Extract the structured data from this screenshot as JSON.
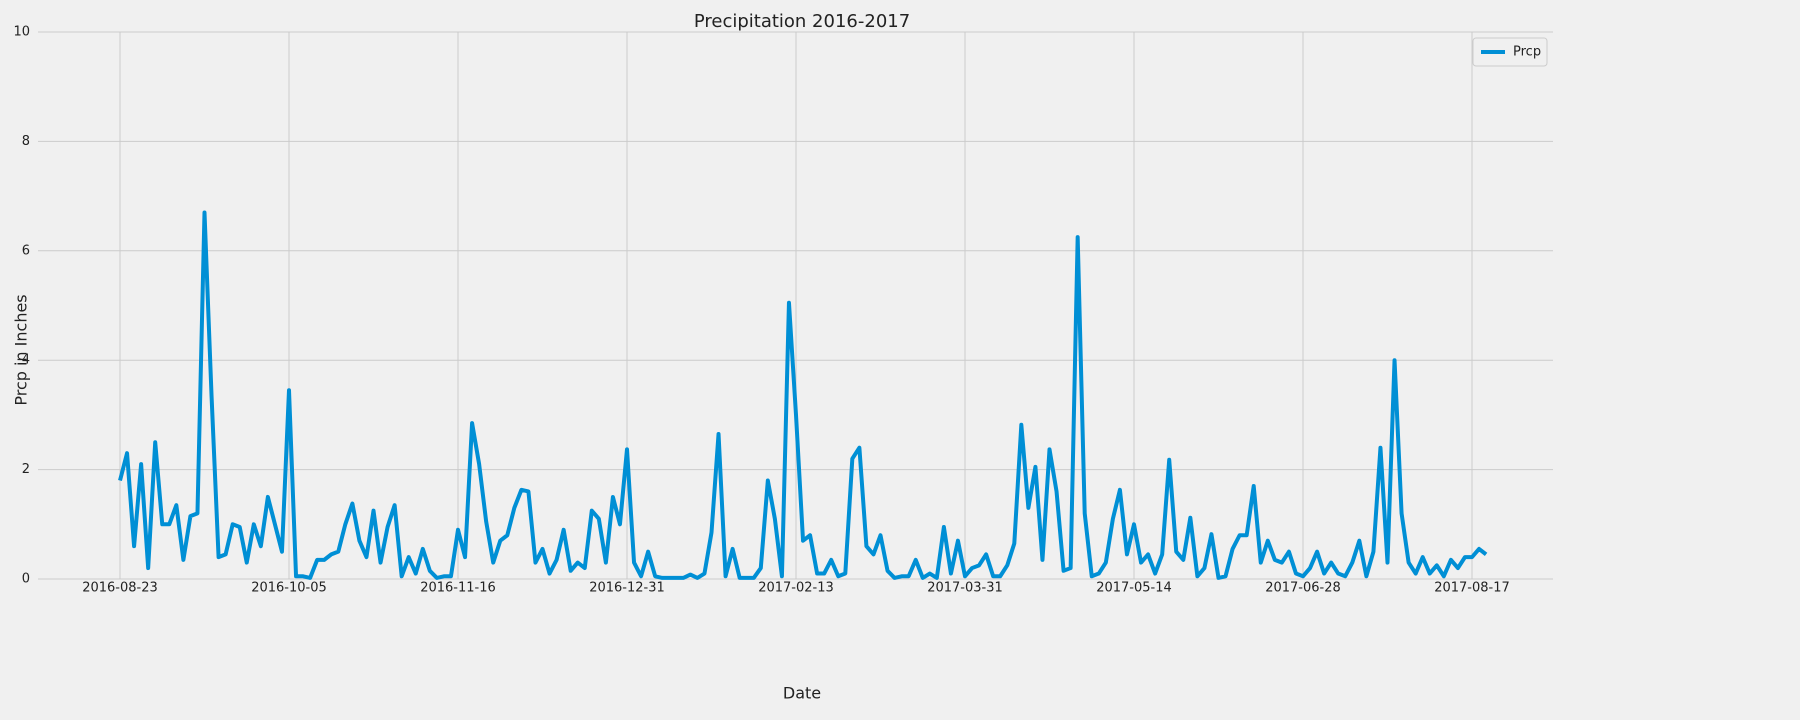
{
  "chart_data": {
    "type": "line",
    "title": "Precipitation 2016-2017",
    "x_label": "Date",
    "y_label": "Prcp in Inches",
    "categories": [
      "2016-08-23",
      null,
      null,
      null,
      null,
      null,
      null,
      null,
      null,
      null,
      null,
      null,
      null,
      null,
      null,
      null,
      null,
      null,
      null,
      null,
      null,
      null,
      null,
      null,
      "2016-10-05",
      null,
      null,
      null,
      null,
      null,
      null,
      null,
      null,
      null,
      null,
      null,
      null,
      null,
      null,
      null,
      null,
      null,
      null,
      null,
      null,
      null,
      null,
      null,
      "2016-11-16",
      null,
      null,
      null,
      null,
      null,
      null,
      null,
      null,
      null,
      null,
      null,
      null,
      null,
      null,
      null,
      null,
      null,
      null,
      null,
      null,
      null,
      null,
      null,
      "2016-12-31",
      null,
      null,
      null,
      null,
      null,
      null,
      null,
      null,
      null,
      null,
      null,
      null,
      null,
      null,
      null,
      null,
      null,
      null,
      null,
      null,
      null,
      null,
      null,
      "2017-02-13",
      null,
      null,
      null,
      null,
      null,
      null,
      null,
      null,
      null,
      null,
      null,
      null,
      null,
      null,
      null,
      null,
      null,
      null,
      null,
      null,
      null,
      null,
      null,
      "2017-03-31",
      null,
      null,
      null,
      null,
      null,
      null,
      null,
      null,
      null,
      null,
      null,
      null,
      null,
      null,
      null,
      null,
      null,
      null,
      null,
      null,
      null,
      null,
      null,
      "2017-05-14",
      null,
      null,
      null,
      null,
      null,
      null,
      null,
      null,
      null,
      null,
      null,
      null,
      null,
      null,
      null,
      null,
      null,
      null,
      null,
      null,
      null,
      null,
      null,
      "2017-06-28",
      null,
      null,
      null,
      null,
      null,
      null,
      null,
      null,
      null,
      null,
      null,
      null,
      null,
      null,
      null,
      null,
      null,
      null,
      null,
      null,
      null,
      null,
      null,
      "2017-08-17",
      null,
      null
    ],
    "series": [
      {
        "name": "Prcp",
        "color": "#008fd5",
        "values": [
          1.8,
          2.3,
          0.6,
          2.1,
          0.2,
          2.5,
          1.0,
          1.0,
          1.35,
          0.35,
          1.15,
          1.2,
          6.7,
          3.35,
          0.4,
          0.45,
          1.0,
          0.95,
          0.3,
          1.0,
          0.6,
          1.5,
          1.0,
          0.5,
          3.45,
          0.05,
          0.05,
          0.02,
          0.35,
          0.35,
          0.45,
          0.5,
          1.0,
          1.38,
          0.7,
          0.4,
          1.25,
          0.3,
          0.95,
          1.35,
          0.05,
          0.4,
          0.1,
          0.55,
          0.15,
          0.02,
          0.05,
          0.05,
          0.9,
          0.4,
          2.85,
          2.1,
          1.05,
          0.3,
          0.7,
          0.8,
          1.3,
          1.63,
          1.6,
          0.3,
          0.55,
          0.1,
          0.35,
          0.9,
          0.15,
          0.3,
          0.2,
          1.25,
          1.1,
          0.3,
          1.5,
          1.0,
          2.37,
          0.3,
          0.05,
          0.5,
          0.05,
          0.02,
          0.02,
          0.02,
          0.02,
          0.08,
          0.02,
          0.1,
          0.85,
          2.65,
          0.05,
          0.55,
          0.02,
          0.02,
          0.02,
          0.2,
          1.8,
          1.1,
          0.05,
          5.05,
          3.0,
          0.7,
          0.8,
          0.1,
          0.1,
          0.35,
          0.05,
          0.1,
          2.2,
          2.4,
          0.6,
          0.45,
          0.8,
          0.15,
          0.02,
          0.05,
          0.05,
          0.35,
          0.02,
          0.1,
          0.02,
          0.95,
          0.1,
          0.7,
          0.05,
          0.2,
          0.25,
          0.45,
          0.05,
          0.05,
          0.25,
          0.65,
          2.82,
          1.3,
          2.05,
          0.35,
          2.37,
          1.6,
          0.15,
          0.2,
          6.25,
          1.2,
          0.05,
          0.1,
          0.3,
          1.1,
          1.63,
          0.45,
          1.0,
          0.3,
          0.45,
          0.1,
          0.45,
          2.18,
          0.5,
          0.35,
          1.12,
          0.05,
          0.2,
          0.82,
          0.02,
          0.05,
          0.55,
          0.8,
          0.8,
          1.7,
          0.3,
          0.7,
          0.35,
          0.3,
          0.5,
          0.1,
          0.05,
          0.2,
          0.5,
          0.1,
          0.3,
          0.1,
          0.05,
          0.3,
          0.7,
          0.05,
          0.5,
          2.4,
          0.3,
          4.0,
          1.2,
          0.3,
          0.1,
          0.4,
          0.1,
          0.25,
          0.05,
          0.35,
          0.2,
          0.4,
          0.4,
          0.55,
          0.45
        ]
      }
    ],
    "ylim": [
      0,
      10
    ],
    "yticks": [
      0,
      2,
      4,
      6,
      8,
      10
    ],
    "grid": true,
    "legend": "upper right"
  }
}
